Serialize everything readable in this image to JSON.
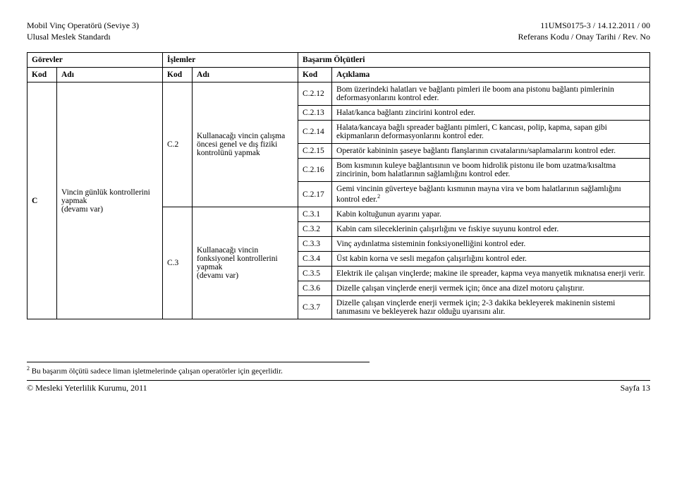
{
  "header": {
    "left_line1": "Mobil Vinç Operatörü (Seviye 3)",
    "left_line2": "Ulusal Meslek Standardı",
    "right_line1": "11UMS0175-3 / 14.12.2011 / 00",
    "right_line2": "Referans Kodu / Onay Tarihi / Rev. No"
  },
  "colhead": {
    "gorevler": "Görevler",
    "islemler": "İşlemler",
    "basarim": "Başarım Ölçütleri",
    "kod": "Kod",
    "adi": "Adı",
    "aciklama": "Açıklama"
  },
  "gorev": {
    "kod": "C",
    "adi": "Vincin günlük kontrollerini yapmak\n(devamı var)"
  },
  "islem1": {
    "kod": "C.2",
    "adi": "Kullanacağı vincin çalışma öncesi genel ve dış fiziki kontrolünü yapmak"
  },
  "islem2": {
    "kod": "C.3",
    "adi": "Kullanacağı vincin fonksiyonel kontrollerini yapmak\n(devamı var)"
  },
  "rows": [
    {
      "kod": "C.2.12",
      "text": "Bom üzerindeki halatları ve bağlantı pimleri ile boom ana pistonu bağlantı pimlerinin deformasyonlarını kontrol eder."
    },
    {
      "kod": "C.2.13",
      "text": "Halat/kanca bağlantı zincirini kontrol eder."
    },
    {
      "kod": "C.2.14",
      "text": "Halata/kancaya bağlı spreader bağlantı pimleri, C kancası, polip, kapma, sapan gibi ekipmanların deformasyonlarını kontrol eder."
    },
    {
      "kod": "C.2.15",
      "text": "Operatör kabininin şaseye bağlantı flanşlarının cıvatalarını/saplamalarını kontrol eder."
    },
    {
      "kod": "C.2.16",
      "text": "Bom kısmının kuleye bağlantısının ve boom hidrolik pistonu ile bom uzatma/kısaltma zincirinin, bom halatlarının sağlamlığını kontrol eder."
    },
    {
      "kod": "C.2.17",
      "text": "Gemi vincinin güverteye bağlantı kısmının mayna vira ve bom halatlarının sağlamlığını kontrol eder.",
      "sup": "2"
    },
    {
      "kod": "C.3.1",
      "text": "Kabin koltuğunun ayarını yapar."
    },
    {
      "kod": "C.3.2",
      "text": "Kabin cam sileceklerinin çalışırlığını ve fıskiye suyunu kontrol eder."
    },
    {
      "kod": "C.3.3",
      "text": "Vinç aydınlatma sisteminin fonksiyonelliğini kontrol eder."
    },
    {
      "kod": "C.3.4",
      "text": "Üst kabin korna ve sesli megafon çalışırlığını kontrol eder."
    },
    {
      "kod": "C.3.5",
      "text": "Elektrik ile çalışan vinçlerde; makine ile spreader, kapma veya manyetik mıknatısa enerji verir."
    },
    {
      "kod": "C.3.6",
      "text": "Dizelle çalışan vinçlerde enerji vermek için; önce ana dizel motoru çalıştırır."
    },
    {
      "kod": "C.3.7",
      "text": "Dizelle çalışan vinçlerde enerji vermek için; 2-3 dakika bekleyerek makinenin sistemi tanımasını ve bekleyerek hazır olduğu uyarısını alır."
    }
  ],
  "footnote_marker": "2",
  "footnote_text": " Bu başarım ölçütü sadece liman işletmelerinde çalışan operatörler için geçerlidir.",
  "footer_left": "© Mesleki Yeterlilik Kurumu, 2011",
  "footer_right": "Sayfa 13"
}
